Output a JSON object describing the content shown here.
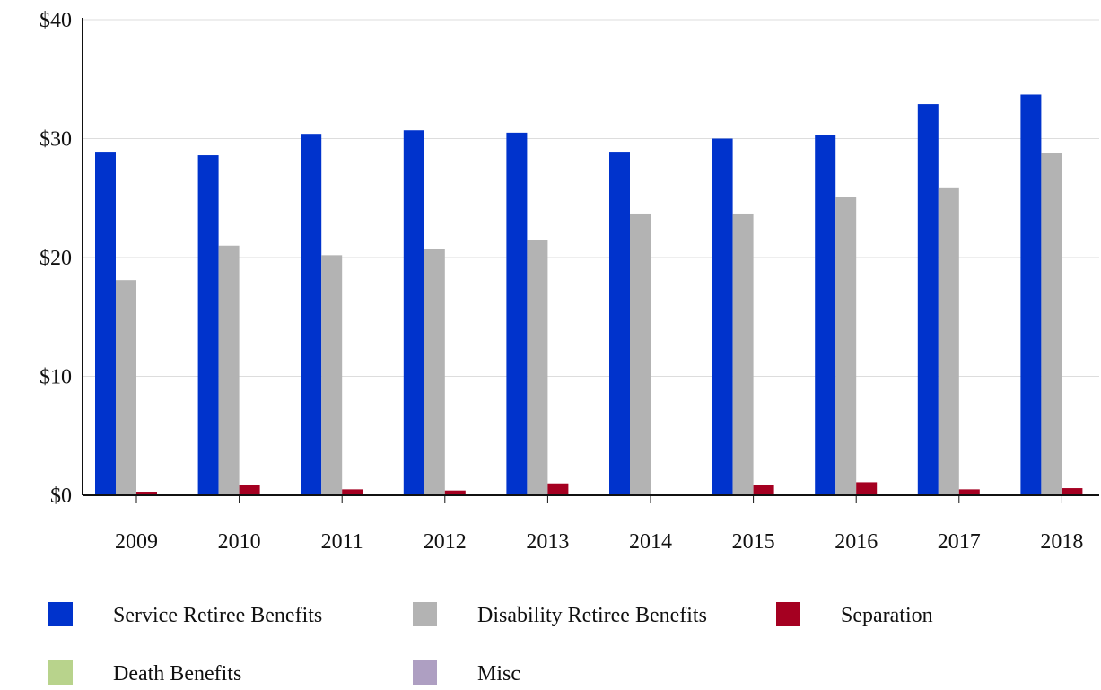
{
  "chart_data": {
    "type": "bar",
    "title": "",
    "xlabel": "",
    "ylabel": "",
    "ylim": [
      0,
      40
    ],
    "yticks": [
      {
        "value": 0,
        "label": "$0"
      },
      {
        "value": 10,
        "label": "$10"
      },
      {
        "value": 20,
        "label": "$20"
      },
      {
        "value": 30,
        "label": "$30"
      },
      {
        "value": 40,
        "label": "$40"
      }
    ],
    "grid": "horizontal",
    "legend_position": "bottom",
    "categories": [
      "2009",
      "2010",
      "2011",
      "2012",
      "2013",
      "2014",
      "2015",
      "2016",
      "2017",
      "2018"
    ],
    "series": [
      {
        "name": "Service Retiree Benefits",
        "color": "#0033cc",
        "values": [
          28.9,
          28.6,
          30.4,
          30.7,
          30.5,
          28.9,
          30.0,
          30.3,
          32.9,
          33.7
        ]
      },
      {
        "name": "Disability Retiree Benefits",
        "color": "#b3b3b3",
        "values": [
          18.1,
          21.0,
          20.2,
          20.7,
          21.5,
          23.7,
          23.7,
          25.1,
          25.9,
          28.8
        ]
      },
      {
        "name": "Separation",
        "color": "#a50021",
        "values": [
          0.3,
          0.9,
          0.5,
          0.4,
          1.0,
          0.0,
          0.9,
          1.1,
          0.5,
          0.6
        ]
      },
      {
        "name": "Death Benefits",
        "color": "#b8d38c",
        "values": [
          0,
          0,
          0,
          0,
          0,
          0,
          0,
          0,
          0,
          0
        ]
      },
      {
        "name": "Misc",
        "color": "#ae9fc2",
        "values": [
          0,
          0,
          0,
          0,
          0,
          0,
          0,
          0,
          0,
          0
        ]
      }
    ]
  }
}
